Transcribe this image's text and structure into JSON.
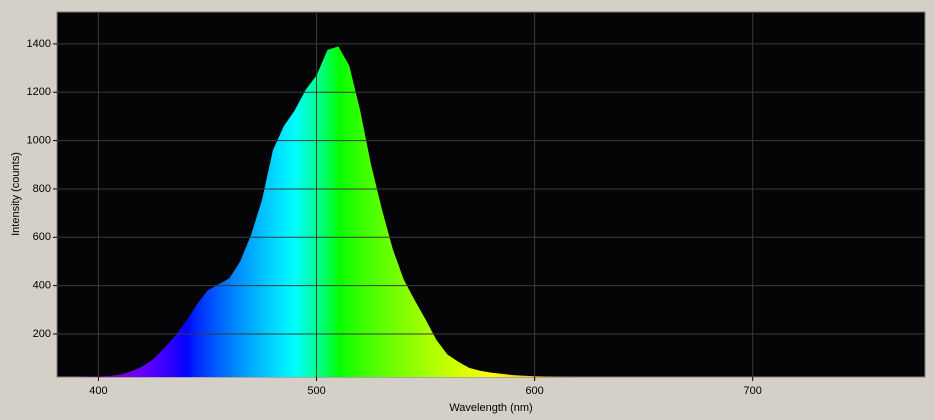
{
  "chart_data": {
    "type": "area",
    "xlabel": "Wavelength (nm)",
    "ylabel": "Intensity (counts)",
    "x": [
      385,
      390,
      395,
      400,
      405,
      410,
      415,
      420,
      425,
      430,
      435,
      440,
      445,
      450,
      455,
      460,
      465,
      470,
      475,
      480,
      485,
      490,
      495,
      500,
      505,
      510,
      515,
      520,
      525,
      530,
      535,
      540,
      545,
      550,
      555,
      560,
      565,
      570,
      575,
      580,
      590,
      600,
      610,
      620,
      650,
      700,
      750,
      779
    ],
    "values": [
      22,
      22,
      23,
      24,
      26,
      32,
      45,
      65,
      95,
      140,
      190,
      250,
      320,
      380,
      405,
      430,
      500,
      610,
      755,
      960,
      1060,
      1125,
      1210,
      1270,
      1375,
      1390,
      1310,
      1125,
      900,
      715,
      550,
      425,
      340,
      260,
      175,
      115,
      85,
      60,
      48,
      40,
      30,
      25,
      23,
      22,
      22,
      22,
      22,
      22
    ],
    "xlim": [
      381,
      779
    ],
    "ylim": [
      22,
      1532
    ],
    "xticks": [
      400,
      500,
      600,
      700
    ],
    "yticks": [
      200,
      400,
      600,
      800,
      1000,
      1200,
      1400
    ],
    "grid": true,
    "fill": "spectrum"
  }
}
